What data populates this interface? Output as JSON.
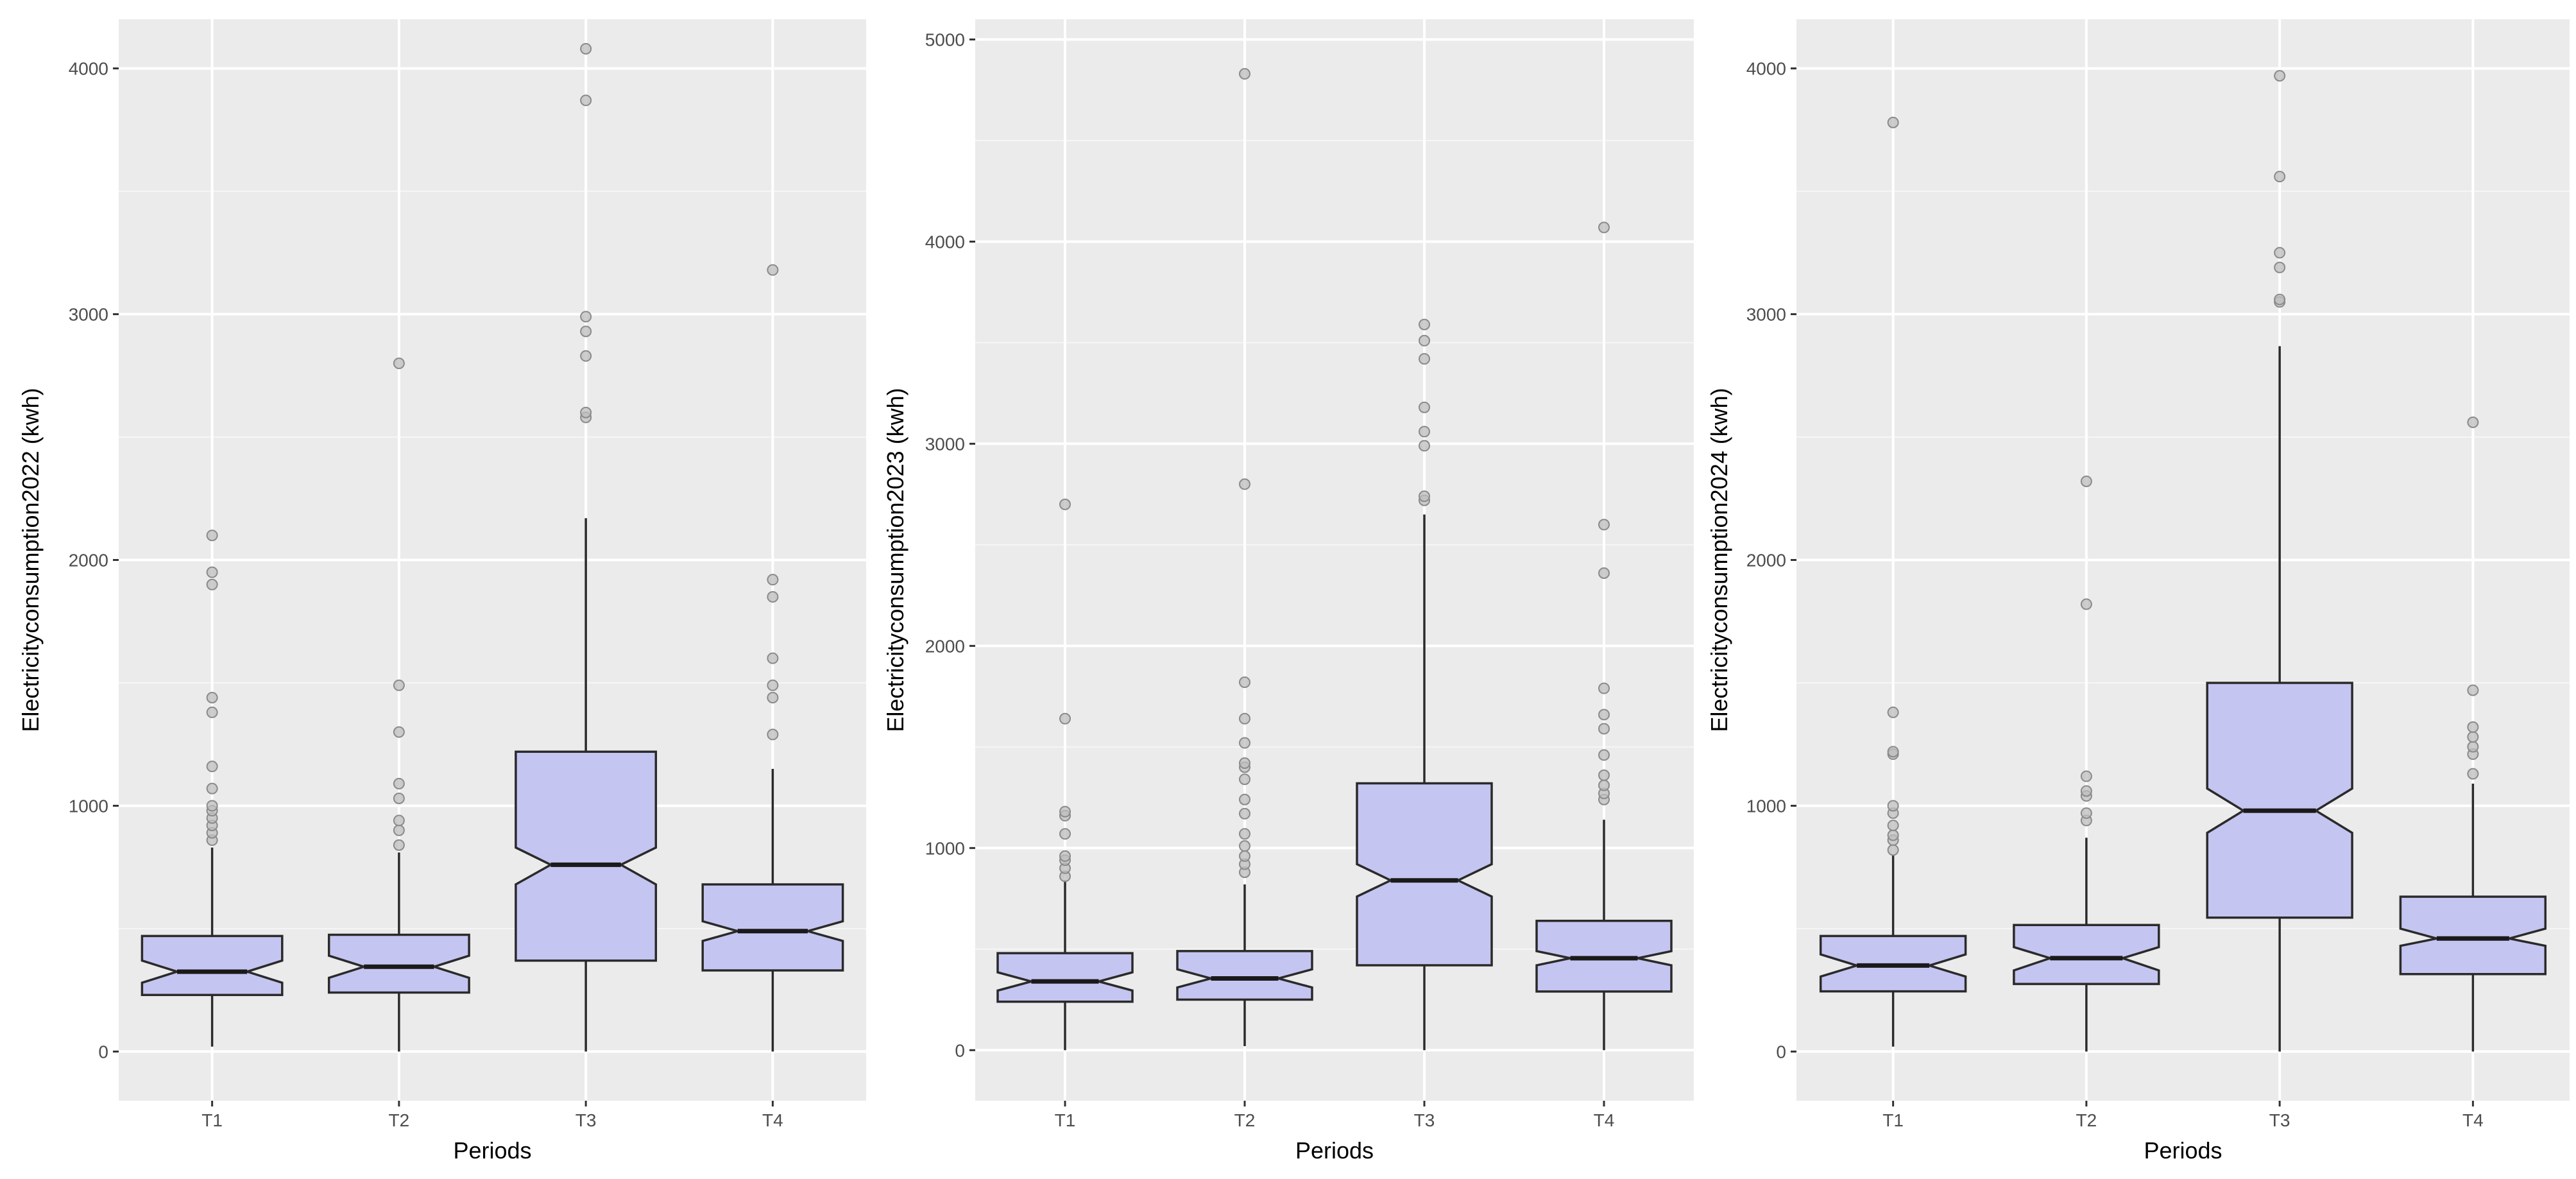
{
  "chart_data": [
    {
      "type": "boxplot",
      "notched": true,
      "xlabel": "Periods",
      "ylabel": "Electricityconsumption2022 (kwh)",
      "categories": [
        "T1",
        "T2",
        "T3",
        "T4"
      ],
      "ylim": [
        -200,
        4200
      ],
      "yticks": [
        0,
        1000,
        2000,
        3000,
        4000
      ],
      "ytick_labels": [
        "0",
        "1000",
        "2000",
        "3000",
        "4000"
      ],
      "boxes": [
        {
          "category": "T1",
          "min": 20,
          "q1": 230,
          "median": 325,
          "q3": 470,
          "max": 830,
          "notch_lo": 280,
          "notch_hi": 370,
          "outliers": [
            860,
            890,
            920,
            950,
            980,
            1000,
            1070,
            1160,
            1380,
            1440,
            1900,
            1950,
            2100
          ]
        },
        {
          "category": "T2",
          "min": 0,
          "q1": 240,
          "median": 345,
          "q3": 475,
          "max": 810,
          "notch_lo": 300,
          "notch_hi": 390,
          "outliers": [
            840,
            900,
            940,
            1030,
            1090,
            1300,
            1490,
            2800
          ]
        },
        {
          "category": "T3",
          "min": 0,
          "q1": 370,
          "median": 760,
          "q3": 1220,
          "max": 2170,
          "notch_lo": 680,
          "notch_hi": 830,
          "outliers": [
            2580,
            2600,
            2830,
            2930,
            2990,
            3870,
            4080
          ]
        },
        {
          "category": "T4",
          "min": 0,
          "q1": 330,
          "median": 490,
          "q3": 680,
          "max": 1150,
          "notch_lo": 450,
          "notch_hi": 530,
          "outliers": [
            1290,
            1440,
            1490,
            1600,
            1850,
            1920,
            3180
          ]
        }
      ]
    },
    {
      "type": "boxplot",
      "notched": true,
      "xlabel": "Periods",
      "ylabel": "Electricityconsumption2023 (kwh)",
      "categories": [
        "T1",
        "T2",
        "T3",
        "T4"
      ],
      "ylim": [
        -250,
        5100
      ],
      "yticks": [
        0,
        1000,
        2000,
        3000,
        4000,
        5000
      ],
      "ytick_labels": [
        "0",
        "1000",
        "2000",
        "3000",
        "4000",
        "5000"
      ],
      "boxes": [
        {
          "category": "T1",
          "min": 0,
          "q1": 240,
          "median": 340,
          "q3": 480,
          "max": 840,
          "notch_lo": 295,
          "notch_hi": 385,
          "outliers": [
            860,
            900,
            940,
            960,
            1070,
            1160,
            1180,
            1640,
            2700
          ]
        },
        {
          "category": "T2",
          "min": 20,
          "q1": 250,
          "median": 355,
          "q3": 490,
          "max": 820,
          "notch_lo": 310,
          "notch_hi": 400,
          "outliers": [
            880,
            920,
            960,
            1010,
            1070,
            1170,
            1240,
            1340,
            1400,
            1420,
            1520,
            1640,
            1820,
            2800,
            4830
          ]
        },
        {
          "category": "T3",
          "min": 0,
          "q1": 420,
          "median": 840,
          "q3": 1320,
          "max": 2650,
          "notch_lo": 760,
          "notch_hi": 920,
          "outliers": [
            2720,
            2740,
            2990,
            3060,
            3180,
            3420,
            3510,
            3590
          ]
        },
        {
          "category": "T4",
          "min": 0,
          "q1": 290,
          "median": 455,
          "q3": 640,
          "max": 1140,
          "notch_lo": 420,
          "notch_hi": 490,
          "outliers": [
            1240,
            1270,
            1310,
            1360,
            1460,
            1590,
            1660,
            1790,
            2360,
            2600,
            4070
          ]
        }
      ]
    },
    {
      "type": "boxplot",
      "notched": true,
      "xlabel": "Periods",
      "ylabel": "Electricityconsumption2024 (kwh)",
      "categories": [
        "T1",
        "T2",
        "T3",
        "T4"
      ],
      "ylim": [
        -200,
        4200
      ],
      "yticks": [
        0,
        1000,
        2000,
        3000,
        4000
      ],
      "ytick_labels": [
        "0",
        "1000",
        "2000",
        "3000",
        "4000"
      ],
      "boxes": [
        {
          "category": "T1",
          "min": 20,
          "q1": 245,
          "median": 350,
          "q3": 470,
          "max": 800,
          "notch_lo": 305,
          "notch_hi": 395,
          "outliers": [
            820,
            860,
            880,
            920,
            970,
            1000,
            1210,
            1220,
            1380,
            3780
          ]
        },
        {
          "category": "T2",
          "min": 0,
          "q1": 275,
          "median": 380,
          "q3": 515,
          "max": 870,
          "notch_lo": 330,
          "notch_hi": 425,
          "outliers": [
            940,
            970,
            1040,
            1060,
            1120,
            1820,
            2320
          ]
        },
        {
          "category": "T3",
          "min": 0,
          "q1": 545,
          "median": 980,
          "q3": 1500,
          "max": 2870,
          "notch_lo": 890,
          "notch_hi": 1070,
          "outliers": [
            3050,
            3060,
            3190,
            3250,
            3560,
            3970
          ]
        },
        {
          "category": "T4",
          "min": 0,
          "q1": 315,
          "median": 460,
          "q3": 630,
          "max": 1090,
          "notch_lo": 430,
          "notch_hi": 500,
          "outliers": [
            1130,
            1210,
            1240,
            1280,
            1320,
            1470,
            2560
          ]
        }
      ]
    }
  ]
}
